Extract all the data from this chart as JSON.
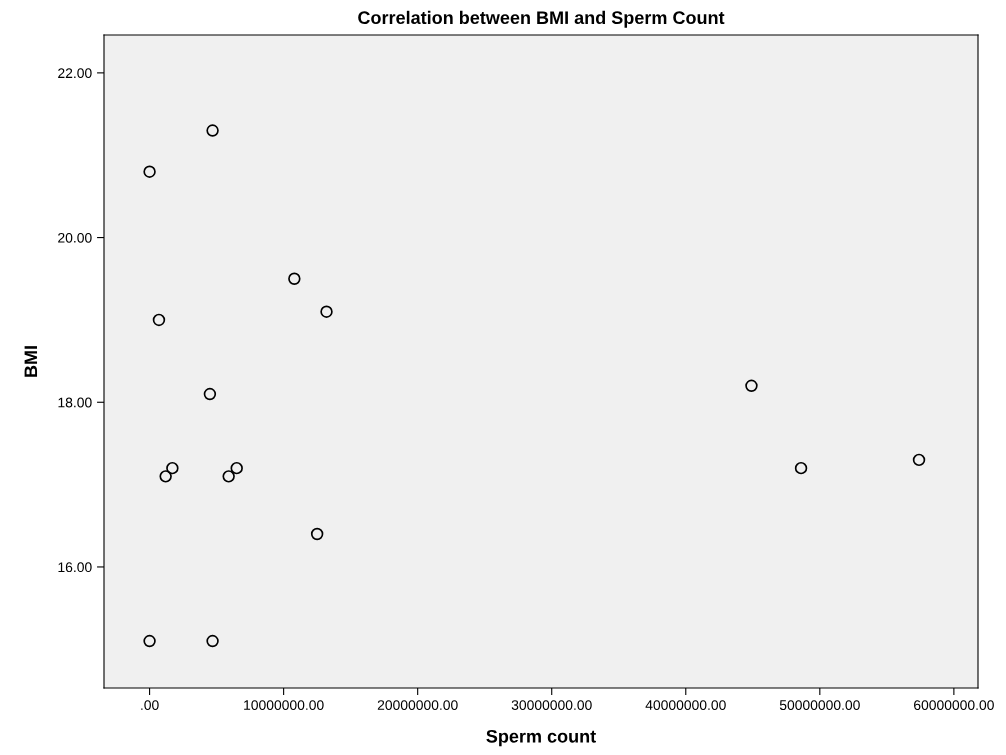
{
  "chart_data": {
    "type": "scatter",
    "title": "Correlation between BMI and Sperm Count",
    "xlabel": "Sperm count",
    "ylabel": "BMI",
    "x": [
      4700000,
      0,
      700000,
      10800000,
      13200000,
      4500000,
      1200000,
      1700000,
      5900000,
      6500000,
      12500000,
      0,
      4700000,
      44900000,
      48600000,
      57400000
    ],
    "values": [
      21.3,
      20.8,
      19.0,
      19.5,
      19.1,
      18.1,
      17.1,
      17.2,
      17.1,
      17.2,
      16.4,
      15.1,
      15.1,
      18.2,
      17.2,
      17.3
    ],
    "color": "#000000",
    "marker": "circle",
    "grid": false,
    "xlim": [
      -3400000,
      61800000
    ],
    "xticks": [
      {
        "value": 0,
        "label": ".00"
      },
      {
        "value": 10000000,
        "label": "10000000.00"
      },
      {
        "value": 20000000,
        "label": "20000000.00"
      },
      {
        "value": 30000000,
        "label": "30000000.00"
      },
      {
        "value": 40000000,
        "label": "40000000.00"
      },
      {
        "value": 50000000,
        "label": "50000000.00"
      },
      {
        "value": 60000000,
        "label": "60000000.00"
      }
    ],
    "ylim": [
      14.53,
      22.46
    ],
    "yticks": [
      {
        "value": 16,
        "label": "16.00"
      },
      {
        "value": 18,
        "label": "18.00"
      },
      {
        "value": 20,
        "label": "20.00"
      },
      {
        "value": 22,
        "label": "22.00"
      }
    ]
  }
}
